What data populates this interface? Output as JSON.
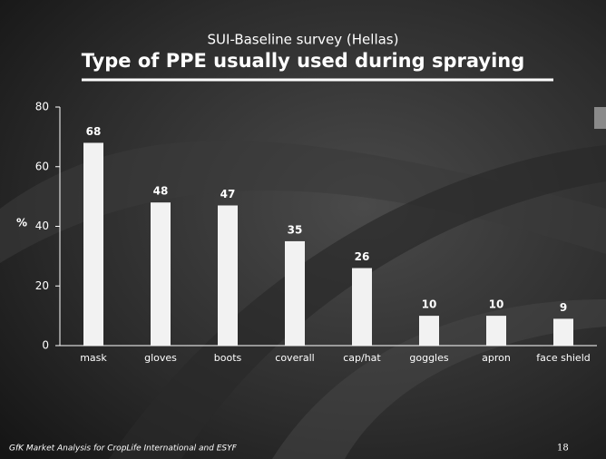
{
  "chart_data": {
    "type": "bar",
    "subtitle": "SUI-Baseline survey (Hellas)",
    "title": "Type of PPE usually used during spraying",
    "y_label": "%",
    "categories": [
      "mask",
      "gloves",
      "boots",
      "coverall",
      "cap/hat",
      "goggles",
      "apron",
      "face shield"
    ],
    "values": [
      68,
      48,
      47,
      35,
      26,
      10,
      10,
      9
    ],
    "color": "#f2f2f2",
    "ylim": [
      0,
      80
    ],
    "yticks": [
      0,
      20,
      40,
      60,
      80
    ],
    "grid": false,
    "footnote": "GfK Market Analysis for CropLife International and ESYF",
    "page_number": "18"
  }
}
